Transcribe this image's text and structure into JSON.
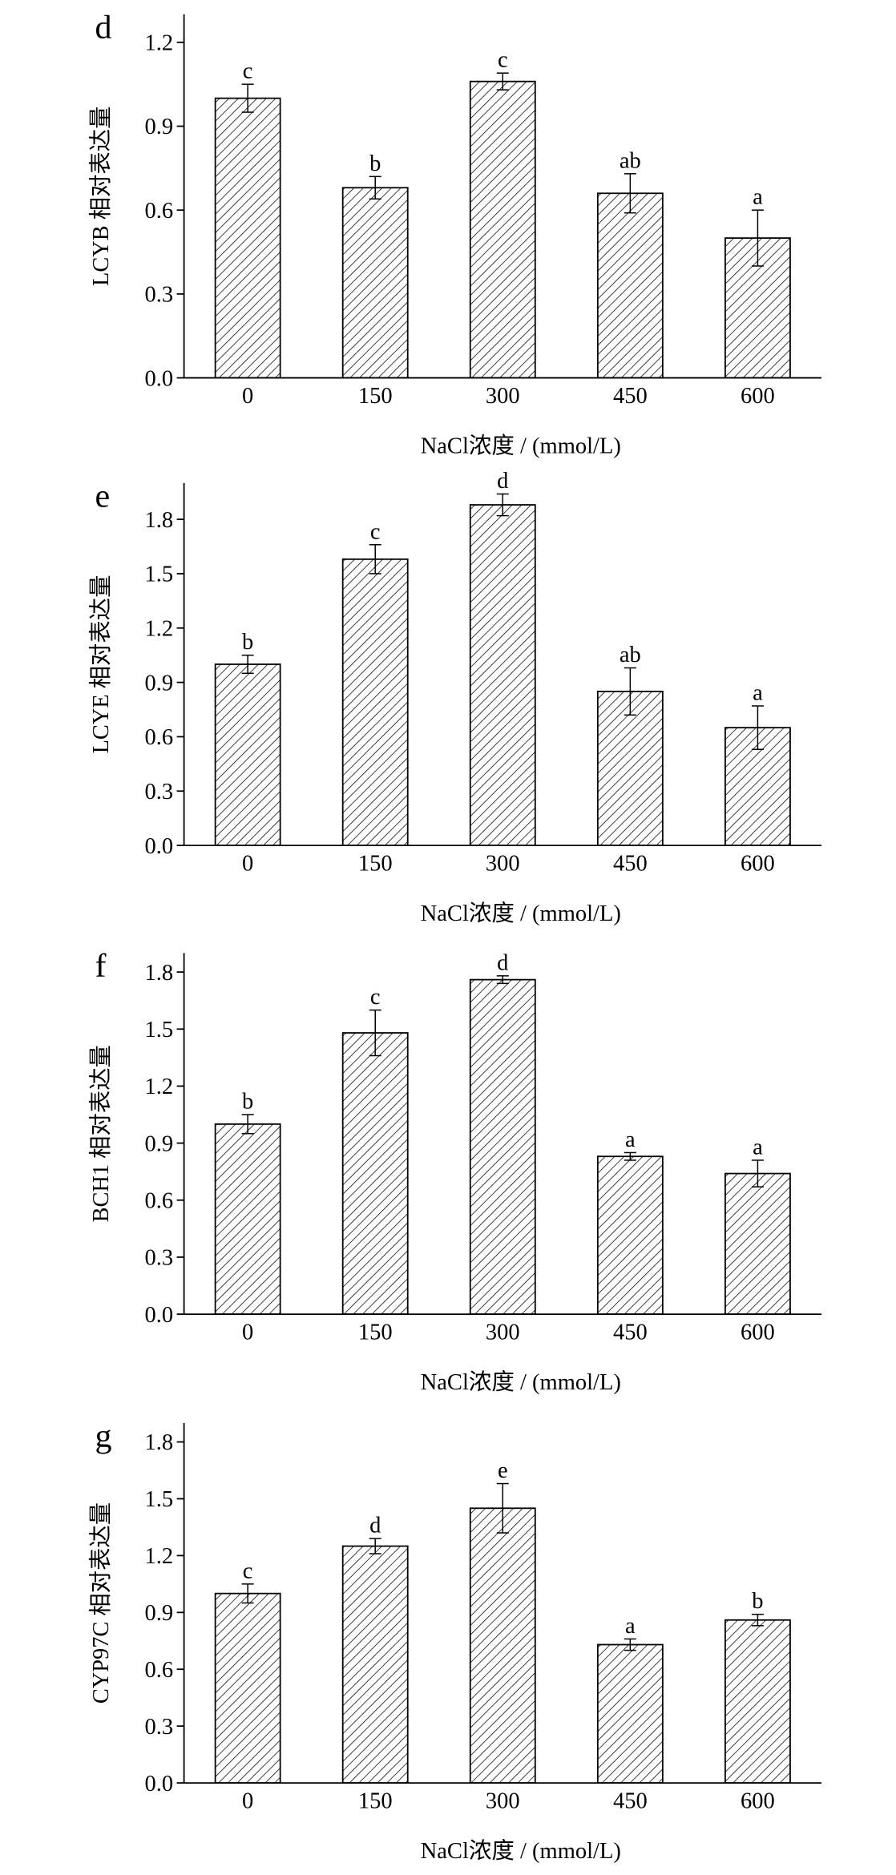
{
  "chart_data": [
    {
      "type": "bar",
      "panel_label": "d",
      "categories": [
        "0",
        "150",
        "300",
        "450",
        "600"
      ],
      "values": [
        1.0,
        0.68,
        1.06,
        0.66,
        0.5
      ],
      "errors": [
        0.05,
        0.04,
        0.03,
        0.07,
        0.1
      ],
      "significance": [
        "c",
        "b",
        "c",
        "ab",
        "a"
      ],
      "xlabel": "NaCl浓度 / (mmol/L)",
      "ylabel": "LCYB 相对表达量",
      "ylim": [
        0,
        1.3
      ],
      "yticks": [
        "0.0",
        "0.3",
        "0.6",
        "0.9",
        "1.2"
      ],
      "grid": false,
      "bar_color": "#000000"
    },
    {
      "type": "bar",
      "panel_label": "e",
      "categories": [
        "0",
        "150",
        "300",
        "450",
        "600"
      ],
      "values": [
        1.0,
        1.58,
        1.88,
        0.85,
        0.65
      ],
      "errors": [
        0.05,
        0.08,
        0.06,
        0.13,
        0.12
      ],
      "significance": [
        "b",
        "c",
        "d",
        "ab",
        "a"
      ],
      "xlabel": "NaCl浓度 / (mmol/L)",
      "ylabel": "LCYE 相对表达量",
      "ylim": [
        0,
        2.0
      ],
      "yticks": [
        "0.0",
        "0.3",
        "0.6",
        "0.9",
        "1.2",
        "1.5",
        "1.8"
      ],
      "grid": false,
      "bar_color": "#000000"
    },
    {
      "type": "bar",
      "panel_label": "f",
      "categories": [
        "0",
        "150",
        "300",
        "450",
        "600"
      ],
      "values": [
        1.0,
        1.48,
        1.76,
        0.83,
        0.74
      ],
      "errors": [
        0.05,
        0.12,
        0.02,
        0.02,
        0.07
      ],
      "significance": [
        "b",
        "c",
        "d",
        "a",
        "a"
      ],
      "xlabel": "NaCl浓度 / (mmol/L)",
      "ylabel": "BCH1 相对表达量",
      "ylim": [
        0,
        1.9
      ],
      "yticks": [
        "0.0",
        "0.3",
        "0.6",
        "0.9",
        "1.2",
        "1.5",
        "1.8"
      ],
      "grid": false,
      "bar_color": "#000000"
    },
    {
      "type": "bar",
      "panel_label": "g",
      "categories": [
        "0",
        "150",
        "300",
        "450",
        "600"
      ],
      "values": [
        1.0,
        1.25,
        1.45,
        0.73,
        0.86
      ],
      "errors": [
        0.05,
        0.04,
        0.13,
        0.03,
        0.03
      ],
      "significance": [
        "c",
        "d",
        "e",
        "a",
        "b"
      ],
      "xlabel": "NaCl浓度 / (mmol/L)",
      "ylabel": "CYP97C 相对表达量",
      "ylim": [
        0,
        1.9
      ],
      "yticks": [
        "0.0",
        "0.3",
        "0.6",
        "0.9",
        "1.2",
        "1.5",
        "1.8"
      ],
      "grid": false,
      "bar_color": "#000000"
    }
  ]
}
